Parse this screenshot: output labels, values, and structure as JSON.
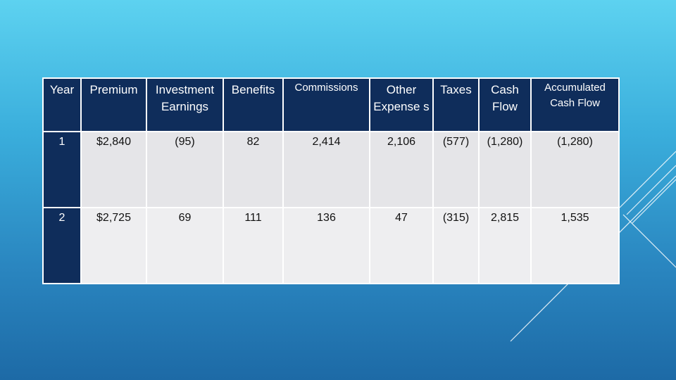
{
  "table": {
    "headers": [
      "Year",
      "Premium",
      "Investment Earnings",
      "Benefits",
      "Commissions",
      "Other Expense s",
      "Taxes",
      "Cash Flow",
      "Accumulated Cash Flow"
    ],
    "rows": [
      [
        "1",
        "$2,840",
        "(95)",
        "82",
        "2,414",
        "2,106",
        "(577)",
        "(1,280)",
        "(1,280)"
      ],
      [
        "2",
        "$2,725",
        "69",
        "111",
        "136",
        "47",
        "(315)",
        "2,815",
        "1,535"
      ]
    ]
  },
  "colors": {
    "header_bg": "#0f2d5b",
    "cell_bg": "#e5e5e8",
    "border": "#ffffff",
    "background_top": "#5dd2f0",
    "background_bottom": "#1d6aa6"
  }
}
